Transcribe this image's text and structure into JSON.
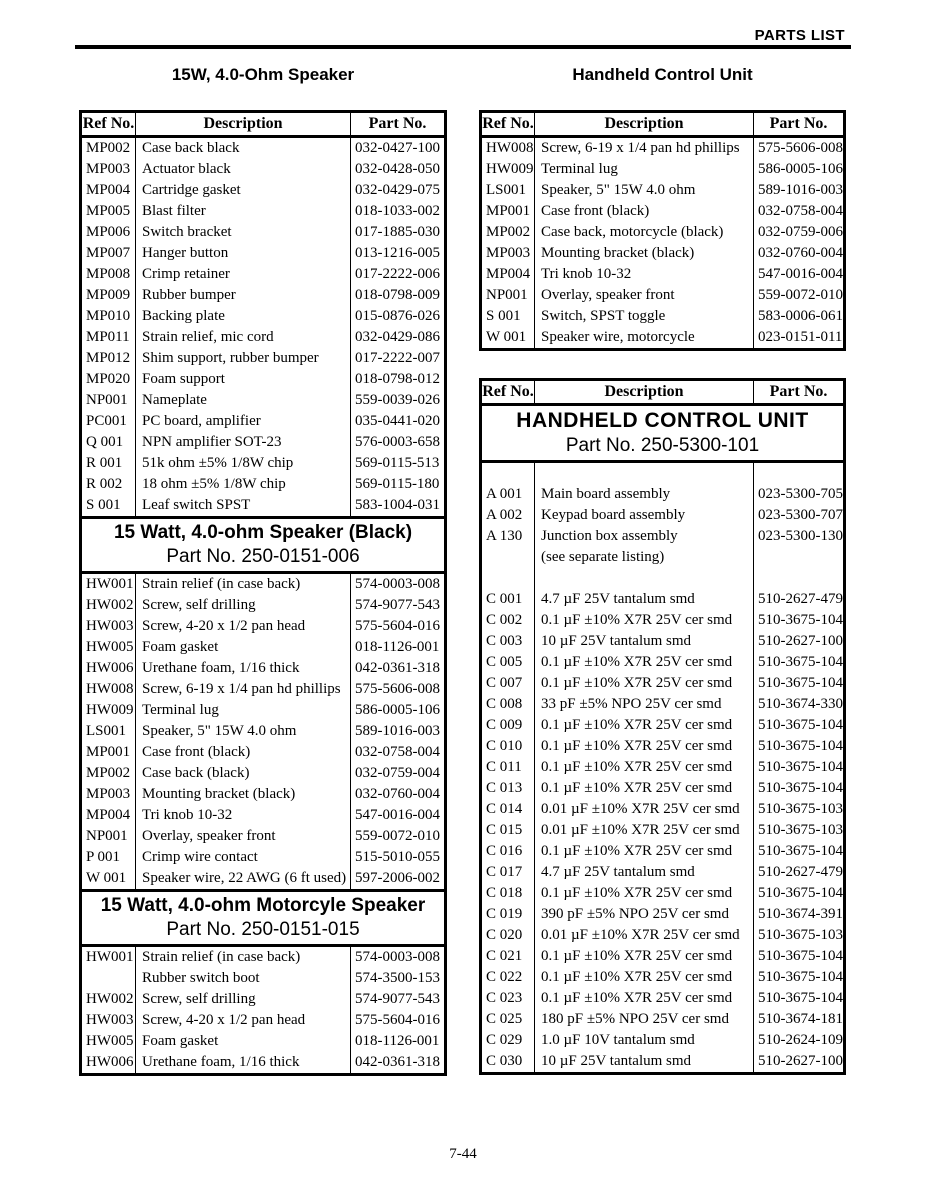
{
  "page": {
    "header_label": "PARTS LIST",
    "page_number": "7-44",
    "left_column_title": "15W, 4.0-Ohm Speaker",
    "right_column_title": "Handheld Control Unit"
  },
  "columns": {
    "ref": "Ref No.",
    "desc": "Description",
    "part": "Part No."
  },
  "left_table": {
    "rows1": [
      [
        "MP002",
        "Case back black",
        "032-0427-100"
      ],
      [
        "MP003",
        "Actuator black",
        "032-0428-050"
      ],
      [
        "MP004",
        "Cartridge gasket",
        "032-0429-075"
      ],
      [
        "MP005",
        "Blast filter",
        "018-1033-002"
      ],
      [
        "MP006",
        "Switch bracket",
        "017-1885-030"
      ],
      [
        "MP007",
        "Hanger button",
        "013-1216-005"
      ],
      [
        "MP008",
        "Crimp retainer",
        "017-2222-006"
      ],
      [
        "MP009",
        "Rubber bumper",
        "018-0798-009"
      ],
      [
        "MP010",
        "Backing plate",
        "015-0876-026"
      ],
      [
        "MP011",
        "Strain relief, mic cord",
        "032-0429-086"
      ],
      [
        "MP012",
        "Shim support, rubber bumper",
        "017-2222-007"
      ],
      [
        "MP020",
        "Foam support",
        "018-0798-012"
      ],
      [
        "NP001",
        "Nameplate",
        "559-0039-026"
      ],
      [
        "PC001",
        "PC board, amplifier",
        "035-0441-020"
      ],
      [
        "Q 001",
        "NPN amplifier SOT-23",
        "576-0003-658"
      ],
      [
        "R 001",
        "51k ohm ±5% 1/8W chip",
        "569-0115-513"
      ],
      [
        "R 002",
        "18 ohm ±5% 1/8W chip",
        "569-0115-180"
      ],
      [
        "S 001",
        "Leaf switch SPST",
        "583-1004-031"
      ]
    ],
    "section_black": {
      "line1": "15 Watt, 4.0-ohm Speaker (Black)",
      "line2": "Part No. 250-0151-006"
    },
    "rows2": [
      [
        "HW001",
        "Strain relief (in case back)",
        "574-0003-008"
      ],
      [
        "HW002",
        "Screw, self drilling",
        "574-9077-543"
      ],
      [
        "HW003",
        "Screw, 4-20 x 1/2 pan head",
        "575-5604-016"
      ],
      [
        "HW005",
        "Foam gasket",
        "018-1126-001"
      ],
      [
        "HW006",
        "Urethane foam, 1/16 thick",
        "042-0361-318"
      ],
      [
        "HW008",
        "Screw, 6-19 x 1/4 pan hd phillips",
        "575-5606-008"
      ],
      [
        "HW009",
        "Terminal lug",
        "586-0005-106"
      ],
      [
        "LS001",
        "Speaker, 5\" 15W 4.0 ohm",
        "589-1016-003"
      ],
      [
        "MP001",
        "Case front (black)",
        "032-0758-004"
      ],
      [
        "MP002",
        "Case back (black)",
        "032-0759-004"
      ],
      [
        "MP003",
        "Mounting bracket (black)",
        "032-0760-004"
      ],
      [
        "MP004",
        "Tri knob 10-32",
        "547-0016-004"
      ],
      [
        "NP001",
        "Overlay, speaker front",
        "559-0072-010"
      ],
      [
        "P 001",
        "Crimp wire contact",
        "515-5010-055"
      ],
      [
        "W 001",
        "Speaker wire, 22 AWG (6 ft used)",
        "597-2006-002"
      ]
    ],
    "section_motorcycle": {
      "line1": "15 Watt, 4.0-ohm Motorcyle Speaker",
      "line2": "Part No. 250-0151-015"
    },
    "rows3": [
      [
        "HW001",
        "Strain relief (in case back)",
        "574-0003-008"
      ],
      [
        "",
        "Rubber switch boot",
        "574-3500-153"
      ],
      [
        "HW002",
        "Screw, self drilling",
        "574-9077-543"
      ],
      [
        "HW003",
        "Screw, 4-20 x 1/2 pan head",
        "575-5604-016"
      ],
      [
        "HW005",
        "Foam gasket",
        "018-1126-001"
      ],
      [
        "HW006",
        "Urethane foam, 1/16 thick",
        "042-0361-318"
      ]
    ]
  },
  "right_table_1": {
    "rows": [
      [
        "HW008",
        "Screw, 6-19 x 1/4 pan hd phillips",
        "575-5606-008"
      ],
      [
        "HW009",
        "Terminal lug",
        "586-0005-106"
      ],
      [
        "LS001",
        "Speaker, 5\" 15W 4.0 ohm",
        "589-1016-003"
      ],
      [
        "MP001",
        "Case front (black)",
        "032-0758-004"
      ],
      [
        "MP002",
        "Case back, motorcycle (black)",
        "032-0759-006"
      ],
      [
        "MP003",
        "Mounting bracket (black)",
        "032-0760-004"
      ],
      [
        "MP004",
        "Tri knob 10-32",
        "547-0016-004"
      ],
      [
        "NP001",
        "Overlay, speaker front",
        "559-0072-010"
      ],
      [
        "S 001",
        "Switch, SPST toggle",
        "583-0006-061"
      ],
      [
        "W 001",
        "Speaker wire, motorcycle",
        "023-0151-011"
      ]
    ]
  },
  "right_table_2": {
    "section_hcu": {
      "line1": "HANDHELD CONTROL UNIT",
      "line2": "Part No. 250-5300-101"
    },
    "rows": [
      [
        "",
        "",
        ""
      ],
      [
        "A 001",
        "Main board assembly",
        "023-5300-705"
      ],
      [
        "A 002",
        "Keypad board assembly",
        "023-5300-707"
      ],
      [
        "A 130",
        "Junction box assembly",
        "023-5300-130"
      ],
      [
        "",
        "(see separate listing)",
        ""
      ],
      [
        "",
        "",
        ""
      ],
      [
        "C 001",
        "4.7 µF 25V tantalum smd",
        "510-2627-479"
      ],
      [
        "C 002",
        "0.1 µF ±10% X7R 25V cer smd",
        "510-3675-104"
      ],
      [
        "C 003",
        "10 µF 25V tantalum smd",
        "510-2627-100"
      ],
      [
        "C 005",
        "0.1 µF ±10% X7R 25V cer smd",
        "510-3675-104"
      ],
      [
        "C 007",
        "0.1 µF ±10% X7R 25V cer smd",
        "510-3675-104"
      ],
      [
        "C 008",
        "33 pF ±5% NPO 25V cer smd",
        "510-3674-330"
      ],
      [
        "C 009",
        "0.1 µF ±10% X7R 25V cer smd",
        "510-3675-104"
      ],
      [
        "C 010",
        "0.1 µF ±10% X7R 25V cer smd",
        "510-3675-104"
      ],
      [
        "C 011",
        "0.1 µF ±10% X7R 25V cer smd",
        "510-3675-104"
      ],
      [
        "C 013",
        "0.1 µF ±10% X7R 25V cer smd",
        "510-3675-104"
      ],
      [
        "C 014",
        "0.01 µF ±10% X7R 25V cer smd",
        "510-3675-103"
      ],
      [
        "C 015",
        "0.01 µF ±10% X7R 25V cer smd",
        "510-3675-103"
      ],
      [
        "C 016",
        "0.1 µF ±10% X7R 25V cer smd",
        "510-3675-104"
      ],
      [
        "C 017",
        "4.7 µF 25V tantalum smd",
        "510-2627-479"
      ],
      [
        "C 018",
        "0.1 µF ±10% X7R 25V cer smd",
        "510-3675-104"
      ],
      [
        "C 019",
        "390 pF ±5% NPO 25V cer smd",
        "510-3674-391"
      ],
      [
        "C 020",
        "0.01 µF ±10% X7R 25V cer smd",
        "510-3675-103"
      ],
      [
        "C 021",
        "0.1 µF ±10% X7R 25V cer smd",
        "510-3675-104"
      ],
      [
        "C 022",
        "0.1 µF ±10% X7R 25V cer smd",
        "510-3675-104"
      ],
      [
        "C 023",
        "0.1 µF ±10% X7R 25V cer smd",
        "510-3675-104"
      ],
      [
        "C 025",
        "180 pF ±5% NPO 25V cer smd",
        "510-3674-181"
      ],
      [
        "C 029",
        "1.0 µF 10V tantalum smd",
        "510-2624-109"
      ],
      [
        "C 030",
        "10 µF 25V tantalum smd",
        "510-2627-100"
      ]
    ]
  }
}
